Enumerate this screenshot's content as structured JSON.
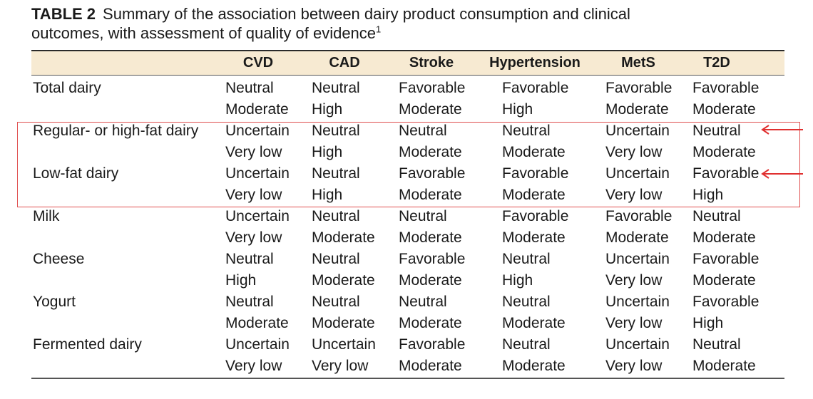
{
  "caption": {
    "label": "TABLE 2",
    "line1": "Summary of the association between dairy product consumption and clinical",
    "line2": "outcomes, with assessment of quality of evidence",
    "footnote_mark": "1"
  },
  "columns": [
    "CVD",
    "CAD",
    "Stroke",
    "Hypertension",
    "MetS",
    "T2D"
  ],
  "rows": [
    {
      "label": "Total dairy",
      "association": [
        "Neutral",
        "Neutral",
        "Favorable",
        "Favorable",
        "Favorable",
        "Favorable"
      ],
      "quality": [
        "Moderate",
        "High",
        "Moderate",
        "High",
        "Moderate",
        "Moderate"
      ]
    },
    {
      "label": "Regular- or high-fat dairy",
      "association": [
        "Uncertain",
        "Neutral",
        "Neutral",
        "Neutral",
        "Uncertain",
        "Neutral"
      ],
      "quality": [
        "Very low",
        "High",
        "Moderate",
        "Moderate",
        "Very low",
        "Moderate"
      ]
    },
    {
      "label": "Low-fat dairy",
      "association": [
        "Uncertain",
        "Neutral",
        "Favorable",
        "Favorable",
        "Uncertain",
        "Favorable"
      ],
      "quality": [
        "Very low",
        "High",
        "Moderate",
        "Moderate",
        "Very low",
        "High"
      ]
    },
    {
      "label": "Milk",
      "association": [
        "Uncertain",
        "Neutral",
        "Neutral",
        "Favorable",
        "Favorable",
        "Neutral"
      ],
      "quality": [
        "Very low",
        "Moderate",
        "Moderate",
        "Moderate",
        "Moderate",
        "Moderate"
      ]
    },
    {
      "label": "Cheese",
      "association": [
        "Neutral",
        "Neutral",
        "Favorable",
        "Neutral",
        "Uncertain",
        "Favorable"
      ],
      "quality": [
        "High",
        "Moderate",
        "Moderate",
        "High",
        "Very low",
        "Moderate"
      ]
    },
    {
      "label": "Yogurt",
      "association": [
        "Neutral",
        "Neutral",
        "Neutral",
        "Neutral",
        "Uncertain",
        "Favorable"
      ],
      "quality": [
        "Moderate",
        "Moderate",
        "Moderate",
        "Moderate",
        "Very low",
        "High"
      ]
    },
    {
      "label": "Fermented dairy",
      "association": [
        "Uncertain",
        "Uncertain",
        "Favorable",
        "Neutral",
        "Uncertain",
        "Neutral"
      ],
      "quality": [
        "Very low",
        "Very low",
        "Moderate",
        "Moderate",
        "Very low",
        "Moderate"
      ]
    }
  ],
  "annotation": {
    "box_color": "#e05050",
    "arrow_color": "#e03030",
    "highlighted_rows": [
      "Regular- or high-fat dairy",
      "Low-fat dairy"
    ]
  }
}
